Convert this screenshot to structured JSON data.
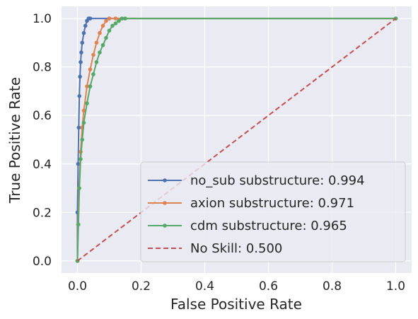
{
  "chart_data": {
    "type": "line",
    "title": "",
    "xlabel": "False Positive Rate",
    "ylabel": "True Positive Rate",
    "xlim": [
      -0.05,
      1.05
    ],
    "ylim": [
      -0.05,
      1.05
    ],
    "xticks": [
      "0.0",
      "0.2",
      "0.4",
      "0.6",
      "0.8",
      "1.0"
    ],
    "yticks": [
      "0.0",
      "0.2",
      "0.4",
      "0.6",
      "0.8",
      "1.0"
    ],
    "grid": true,
    "legend_position": "lower-right",
    "series": [
      {
        "name": "no_sub substructure: 0.994",
        "color": "#4c72b0",
        "marker": "dot",
        "linestyle": "solid",
        "x": [
          0,
          0,
          0.002,
          0.004,
          0.006,
          0.008,
          0.01,
          0.012,
          0.015,
          0.02,
          0.025,
          0.03,
          0.035,
          0.04,
          0.1,
          1.0
        ],
        "y": [
          0,
          0.2,
          0.4,
          0.55,
          0.68,
          0.76,
          0.82,
          0.86,
          0.9,
          0.94,
          0.97,
          0.99,
          1.0,
          1.0,
          1.0,
          1.0
        ]
      },
      {
        "name": "axion substructure: 0.971",
        "color": "#dd8452",
        "marker": "dot",
        "linestyle": "solid",
        "x": [
          0,
          0.002,
          0.005,
          0.01,
          0.015,
          0.02,
          0.03,
          0.04,
          0.05,
          0.06,
          0.07,
          0.08,
          0.09,
          0.1,
          0.12,
          1.0
        ],
        "y": [
          0,
          0.15,
          0.3,
          0.45,
          0.55,
          0.62,
          0.72,
          0.79,
          0.85,
          0.9,
          0.94,
          0.97,
          0.99,
          1.0,
          1.0,
          1.0
        ]
      },
      {
        "name": "cdm substructure: 0.965",
        "color": "#55a868",
        "marker": "dot",
        "linestyle": "solid",
        "x": [
          0,
          0.003,
          0.006,
          0.01,
          0.015,
          0.02,
          0.03,
          0.04,
          0.05,
          0.06,
          0.07,
          0.08,
          0.09,
          0.1,
          0.11,
          0.12,
          0.13,
          0.14,
          0.15,
          1.0
        ],
        "y": [
          0,
          0.15,
          0.3,
          0.42,
          0.5,
          0.57,
          0.65,
          0.72,
          0.77,
          0.82,
          0.86,
          0.89,
          0.92,
          0.95,
          0.97,
          0.98,
          0.99,
          1.0,
          1.0,
          1.0
        ]
      },
      {
        "name": "No Skill: 0.500",
        "color": "#c44e52",
        "marker": "none",
        "linestyle": "dashed",
        "x": [
          0,
          1
        ],
        "y": [
          0,
          1
        ]
      }
    ]
  }
}
